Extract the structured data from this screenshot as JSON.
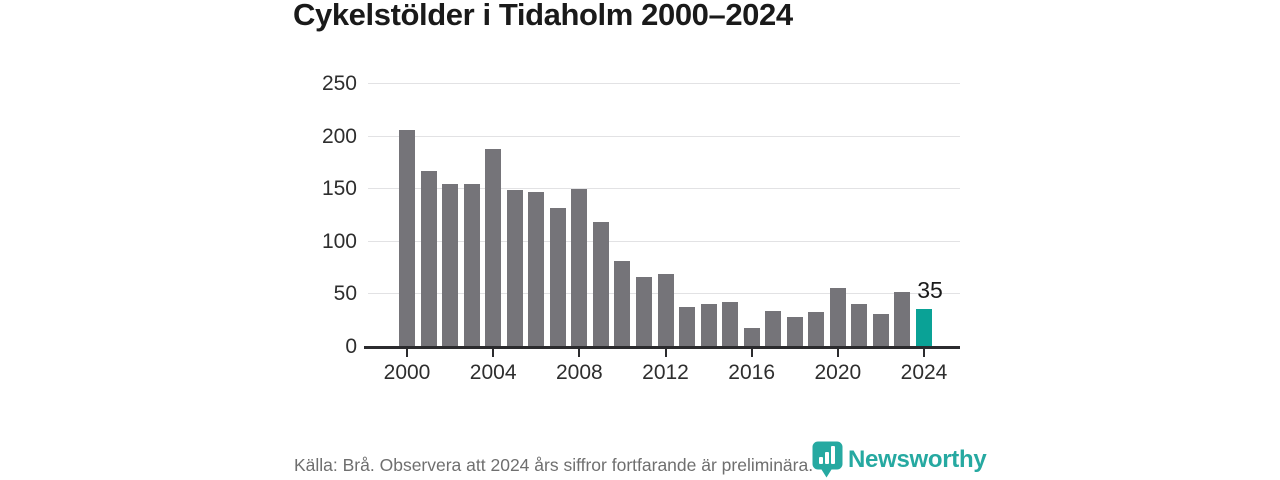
{
  "title": "Cykelstölder i Tidaholm 2000–2024",
  "footer": {
    "source_note": "Källa: Brå. Observera att 2024 års siffror fortfarande är preliminära.",
    "brand_name": "Newsworthy"
  },
  "colors": {
    "bar": "#757479",
    "highlight": "#0aa296",
    "brand": "#14a29a",
    "grid": "#e2e2e4",
    "axis": "#2b2b2e",
    "label": "#2e2e2e",
    "title": "#1a1a1a",
    "muted": "#6f6f6f"
  },
  "chart_data": {
    "type": "bar",
    "title": "Cykelstölder i Tidaholm 2000–2024",
    "xlabel": "",
    "ylabel": "",
    "categories": [
      2000,
      2001,
      2002,
      2003,
      2004,
      2005,
      2006,
      2007,
      2008,
      2009,
      2010,
      2011,
      2012,
      2013,
      2014,
      2015,
      2016,
      2017,
      2018,
      2019,
      2020,
      2021,
      2022,
      2023,
      2024
    ],
    "values": [
      205,
      166,
      154,
      154,
      187,
      148,
      146,
      131,
      149,
      118,
      81,
      66,
      68,
      37,
      40,
      42,
      17,
      33,
      28,
      32,
      55,
      40,
      30,
      51,
      35
    ],
    "highlight_category": 2024,
    "highlight_value_label": "35",
    "xticks": [
      2000,
      2004,
      2008,
      2012,
      2016,
      2020,
      2024
    ],
    "yticks": [
      0,
      50,
      100,
      150,
      200,
      250
    ],
    "ylim": [
      0,
      250
    ],
    "grid": "horizontal-only",
    "legend": "none"
  }
}
